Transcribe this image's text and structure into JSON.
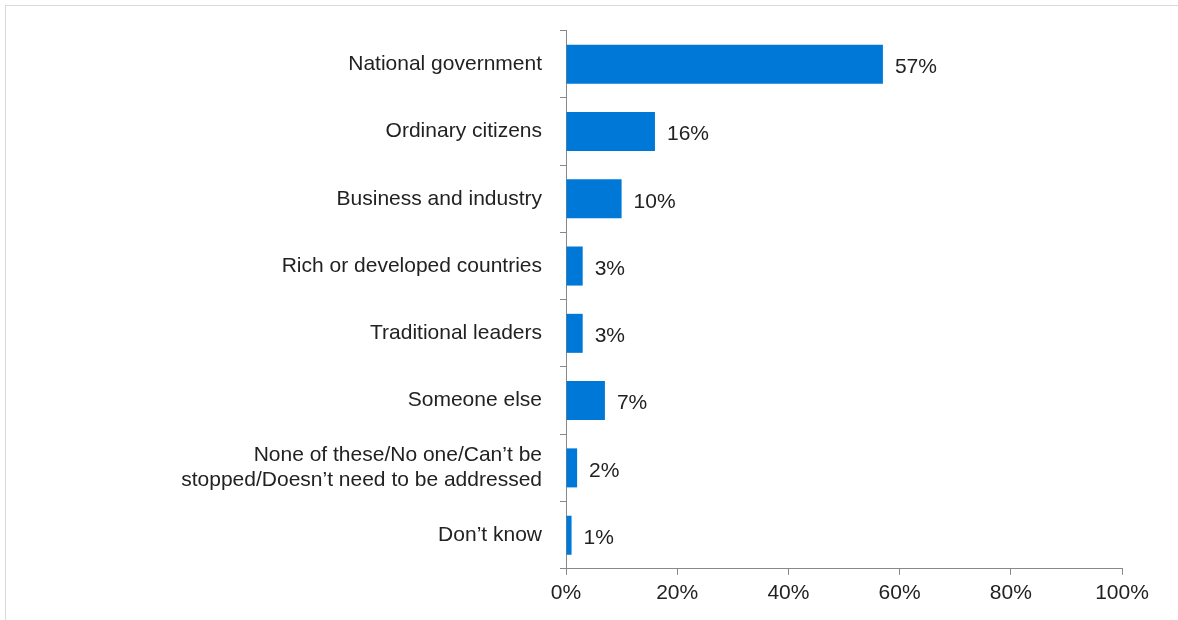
{
  "chart_data": {
    "type": "bar",
    "orientation": "horizontal",
    "categories": [
      "National government",
      "Ordinary citizens",
      "Business and industry",
      "Rich or developed countries",
      "Traditional leaders",
      "Someone else",
      "None of these/No one/Can’t be stopped/Doesn’t need to be addressed",
      "Don’t know"
    ],
    "values": [
      57,
      16,
      10,
      3,
      3,
      7,
      2,
      1
    ],
    "value_labels": [
      "57%",
      "16%",
      "10%",
      "3%",
      "3%",
      "7%",
      "2%",
      "1%"
    ],
    "color": "#0078d7",
    "xlim": [
      0,
      100
    ],
    "xticks": [
      {
        "value": 0,
        "label": "0%"
      },
      {
        "value": 20,
        "label": "20%"
      },
      {
        "value": 40,
        "label": "40%"
      },
      {
        "value": 60,
        "label": "60%"
      },
      {
        "value": 80,
        "label": "80%"
      },
      {
        "value": 100,
        "label": "100%"
      }
    ],
    "grid": false,
    "legend": false
  }
}
